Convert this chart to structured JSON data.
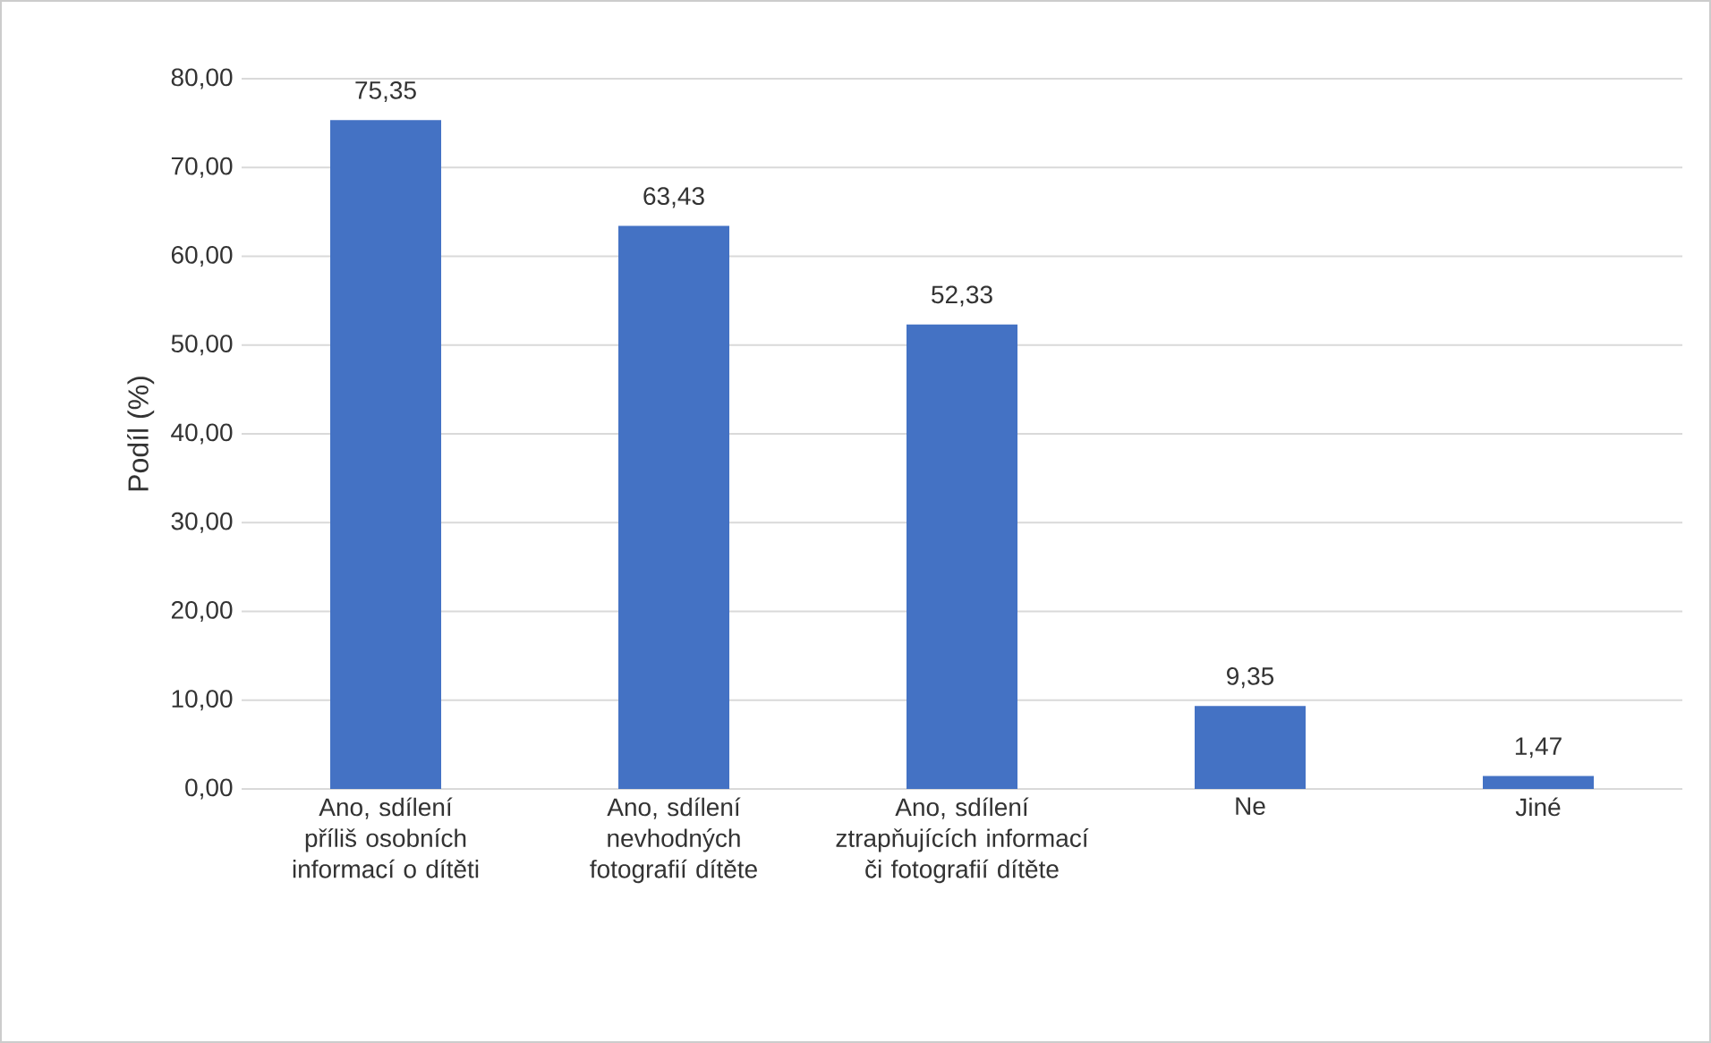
{
  "chart_data": {
    "type": "bar",
    "ylabel": "Podíl (%)",
    "categories": [
      "Ano, sdílení příliš osobních informací o dítěti",
      "Ano, sdílení nevhodných fotografií dítěte",
      "Ano, sdílení ztrapňujících informací či fotografií dítěte",
      "Ne",
      "Jiné"
    ],
    "values": [
      75.35,
      63.43,
      52.33,
      9.35,
      1.47
    ],
    "value_labels": [
      "75,35",
      "63,43",
      "52,33",
      "9,35",
      "1,47"
    ],
    "color": "#4472c4",
    "ylim": [
      0,
      80
    ],
    "yticks": [
      {
        "value": 0,
        "label": "0,00"
      },
      {
        "value": 10,
        "label": "10,00"
      },
      {
        "value": 20,
        "label": "20,00"
      },
      {
        "value": 30,
        "label": "30,00"
      },
      {
        "value": 40,
        "label": "40,00"
      },
      {
        "value": 50,
        "label": "50,00"
      },
      {
        "value": 60,
        "label": "60,00"
      },
      {
        "value": 70,
        "label": "70,00"
      },
      {
        "value": 80,
        "label": "80,00"
      }
    ],
    "grid": "y"
  }
}
